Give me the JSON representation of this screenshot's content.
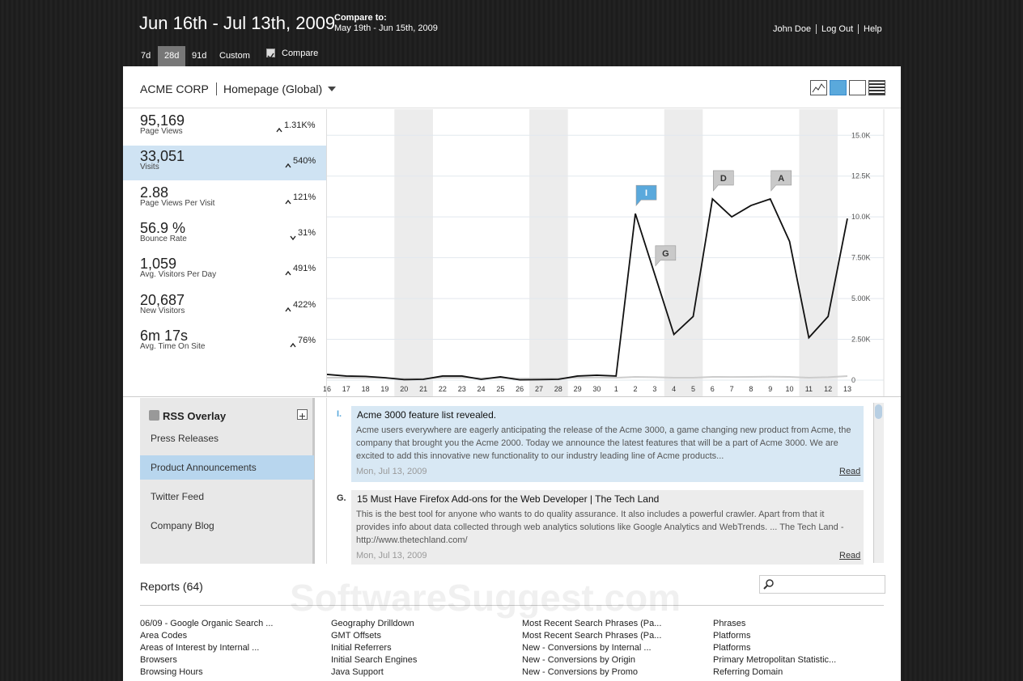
{
  "header": {
    "date_range": "Jun 16th - Jul 13th, 2009",
    "compare_label": "Compare to:",
    "compare_range": "May 19th - Jun 15th, 2009",
    "tabs": [
      "7d",
      "28d",
      "91d",
      "Custom"
    ],
    "active_tab": 1,
    "compare_checkbox": "Compare",
    "compare_checked": true,
    "user_links": [
      "John Doe",
      "Log Out",
      "Help"
    ]
  },
  "panel": {
    "account": "ACME CORP",
    "page": "Homepage (Global)"
  },
  "metrics": [
    {
      "value": "95,169",
      "label": "Page Views",
      "change": "1.31K%",
      "trend": "up"
    },
    {
      "value": "33,051",
      "label": "Visits",
      "change": "540%",
      "trend": "up"
    },
    {
      "value": "2.88",
      "label": "Page Views Per Visit",
      "change": "121%",
      "trend": "up"
    },
    {
      "value": "56.9 %",
      "label": "Bounce Rate",
      "change": "31%",
      "trend": "down"
    },
    {
      "value": "1,059",
      "label": "Avg. Visitors Per Day",
      "change": "491%",
      "trend": "up"
    },
    {
      "value": "20,687",
      "label": "New Visitors",
      "change": "422%",
      "trend": "up"
    },
    {
      "value": "6m 17s",
      "label": "Avg. Time On Site",
      "change": "76%",
      "trend": "up"
    }
  ],
  "selected_metric": 1,
  "chart_data": {
    "type": "line",
    "categories": [
      "16",
      "17",
      "18",
      "19",
      "20",
      "21",
      "22",
      "23",
      "24",
      "25",
      "26",
      "27",
      "28",
      "29",
      "30",
      "1",
      "2",
      "3",
      "4",
      "5",
      "6",
      "7",
      "8",
      "9",
      "10",
      "11",
      "12",
      "13"
    ],
    "series": [
      {
        "color": "#111111",
        "values": [
          350,
          250,
          230,
          150,
          30,
          50,
          250,
          250,
          50,
          200,
          20,
          30,
          50,
          250,
          300,
          250,
          10200,
          6500,
          2800,
          3900,
          11100,
          10000,
          10700,
          11100,
          8500,
          2600,
          3900,
          9900
        ]
      },
      {
        "color": "#cccccc",
        "values": [
          150,
          150,
          140,
          130,
          100,
          100,
          150,
          160,
          120,
          140,
          100,
          100,
          110,
          150,
          160,
          150,
          200,
          180,
          150,
          150,
          200,
          190,
          200,
          210,
          200,
          150,
          180,
          250
        ]
      }
    ],
    "ylim": [
      0,
      16500
    ],
    "yticks": [
      0,
      {
        "value": 2500,
        "label": "2.50K"
      },
      {
        "value": 5000,
        "label": "5.00K"
      },
      {
        "value": 7500,
        "label": "7.50K"
      },
      {
        "value": 10000,
        "label": "10.0K"
      },
      {
        "value": 12500,
        "label": "12.5K"
      },
      {
        "value": 15000,
        "label": "15.0K"
      }
    ],
    "grid": true,
    "annotations": [
      {
        "label": "I",
        "category": "2",
        "color": "#5aa9dc"
      },
      {
        "label": "G",
        "category": "3",
        "color": "#c9c9c9"
      },
      {
        "label": "D",
        "category": "6",
        "color": "#c9c9c9"
      },
      {
        "label": "A",
        "category": "9",
        "color": "#c9c9c9"
      }
    ]
  },
  "rss": {
    "title": "RSS Overlay",
    "feeds": [
      "Press Releases",
      "Product Announcements",
      "Twitter Feed",
      "Company Blog"
    ],
    "selected_feed": 1,
    "items": [
      {
        "marker": "I.",
        "title": "Acme 3000 feature list revealed.",
        "body": "Acme users everywhere are eagerly anticipating the release of the Acme 3000, a game changing new product from Acme, the company that brought you the Acme 2000. Today we announce the latest features that will be a part of Acme 3000. We are excited to add this innovative new functionality to our industry leading line of Acme products...",
        "date": "Mon, Jul 13, 2009",
        "link": "Read"
      },
      {
        "marker": "G.",
        "title": "15 Must Have Firefox Add-ons for the Web Developer | The Tech Land",
        "body": "This is the best tool for anyone who wants to do quality assurance. It also includes a powerful crawler. Apart from that it provides info about data collected through web analytics solutions like Google Analytics and WebTrends. ... The Tech Land - http://www.thetechland.com/",
        "date": "Mon, Jul 13, 2009",
        "link": "Read"
      }
    ]
  },
  "reports": {
    "title": "Reports (64)",
    "columns": [
      [
        "06/09 - Google Organic Search ...",
        "Area Codes",
        "Areas of Interest by Internal ...",
        "Browsers",
        "Browsing Hours"
      ],
      [
        "Geography Drilldown",
        "GMT Offsets",
        "Initial Referrers",
        "Initial Search Engines",
        "Java Support"
      ],
      [
        "Most Recent Search Phrases (Pa...",
        "Most Recent Search Phrases (Pa...",
        "New - Conversions by Internal ...",
        "New - Conversions by Origin",
        "New - Conversions by Promo"
      ],
      [
        "Phrases",
        "Platforms",
        "Platforms",
        "Primary Metropolitan Statistic...",
        "Referring Domain"
      ]
    ]
  },
  "watermark": "SoftwareSuggest.com"
}
